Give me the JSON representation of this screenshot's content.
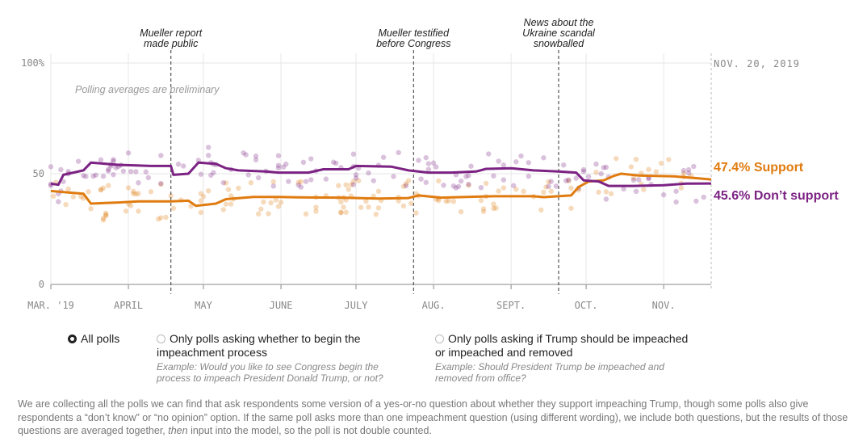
{
  "chart_data": {
    "type": "line",
    "title": "",
    "xlabel": "",
    "ylabel": "",
    "ylim": [
      0,
      100
    ],
    "yticks": [
      {
        "value": 100,
        "label": "100%"
      },
      {
        "value": 50,
        "label": "50"
      },
      {
        "value": 0,
        "label": "0"
      }
    ],
    "xlim": [
      "2019-03-01",
      "2019-11-20"
    ],
    "xticks": [
      {
        "date": "2019-03-01",
        "label": "MAR. '19"
      },
      {
        "date": "2019-04-01",
        "label": "APRIL"
      },
      {
        "date": "2019-05-01",
        "label": "MAY"
      },
      {
        "date": "2019-06-01",
        "label": "JUNE"
      },
      {
        "date": "2019-07-01",
        "label": "JULY"
      },
      {
        "date": "2019-08-01",
        "label": "AUG."
      },
      {
        "date": "2019-09-01",
        "label": "SEPT."
      },
      {
        "date": "2019-10-01",
        "label": "OCT."
      },
      {
        "date": "2019-11-01",
        "label": "NOV."
      }
    ],
    "grid": true,
    "date_label": "NOV. 20, 2019",
    "note": "Polling averages are preliminary",
    "events": [
      {
        "date": "2019-04-18",
        "lines": [
          "Mueller report",
          "made public"
        ]
      },
      {
        "date": "2019-07-24",
        "lines": [
          "Mueller testified",
          "before Congress"
        ]
      },
      {
        "date": "2019-09-20",
        "lines": [
          "News about the",
          "Ukraine scandal",
          "snowballed"
        ]
      }
    ],
    "series": [
      {
        "key": "support",
        "end_label": "47.4% Support",
        "color": "#e07b10",
        "points": [
          [
            "2019-03-01",
            42.2
          ],
          [
            "2019-03-08",
            41.5
          ],
          [
            "2019-03-14",
            41.0
          ],
          [
            "2019-03-17",
            36.5
          ],
          [
            "2019-03-28",
            37.0
          ],
          [
            "2019-04-05",
            37.5
          ],
          [
            "2019-04-18",
            37.5
          ],
          [
            "2019-04-25",
            37.8
          ],
          [
            "2019-04-28",
            35.5
          ],
          [
            "2019-05-06",
            36.5
          ],
          [
            "2019-05-10",
            38.5
          ],
          [
            "2019-05-21",
            39.5
          ],
          [
            "2019-05-31",
            39.5
          ],
          [
            "2019-06-08",
            39.3
          ],
          [
            "2019-06-25",
            39.2
          ],
          [
            "2019-07-10",
            38.8
          ],
          [
            "2019-07-22",
            39.0
          ],
          [
            "2019-07-26",
            40.2
          ],
          [
            "2019-08-04",
            39.2
          ],
          [
            "2019-08-14",
            39.5
          ],
          [
            "2019-08-25",
            39.8
          ],
          [
            "2019-09-10",
            39.8
          ],
          [
            "2019-09-14",
            39.4
          ],
          [
            "2019-09-25",
            40.2
          ],
          [
            "2019-09-28",
            44.0
          ],
          [
            "2019-10-02",
            46.5
          ],
          [
            "2019-10-08",
            47.0
          ],
          [
            "2019-10-12",
            49.0
          ],
          [
            "2019-10-15",
            50.0
          ],
          [
            "2019-10-22",
            49.2
          ],
          [
            "2019-11-05",
            48.8
          ],
          [
            "2019-11-14",
            48.0
          ],
          [
            "2019-11-20",
            47.4
          ]
        ]
      },
      {
        "key": "oppose",
        "end_label": "45.6% Don’t support",
        "color": "#7b2283",
        "points": [
          [
            "2019-03-01",
            45.5
          ],
          [
            "2019-03-04",
            45.0
          ],
          [
            "2019-03-06",
            49.5
          ],
          [
            "2019-03-14",
            51.5
          ],
          [
            "2019-03-17",
            55.0
          ],
          [
            "2019-03-28",
            54.0
          ],
          [
            "2019-04-10",
            53.5
          ],
          [
            "2019-04-18",
            53.5
          ],
          [
            "2019-04-19",
            49.5
          ],
          [
            "2019-04-25",
            50.0
          ],
          [
            "2019-04-29",
            55.0
          ],
          [
            "2019-05-06",
            54.5
          ],
          [
            "2019-05-10",
            52.5
          ],
          [
            "2019-05-15",
            51.5
          ],
          [
            "2019-05-26",
            51.0
          ],
          [
            "2019-05-31",
            50.5
          ],
          [
            "2019-06-12",
            50.5
          ],
          [
            "2019-06-18",
            52.0
          ],
          [
            "2019-06-28",
            52.0
          ],
          [
            "2019-07-01",
            53.5
          ],
          [
            "2019-07-15",
            53.2
          ],
          [
            "2019-07-22",
            51.5
          ],
          [
            "2019-07-30",
            50.5
          ],
          [
            "2019-08-08",
            50.5
          ],
          [
            "2019-08-18",
            51.0
          ],
          [
            "2019-08-22",
            52.2
          ],
          [
            "2019-09-01",
            52.5
          ],
          [
            "2019-09-10",
            51.5
          ],
          [
            "2019-09-20",
            51.0
          ],
          [
            "2019-09-27",
            50.5
          ],
          [
            "2019-09-30",
            47.0
          ],
          [
            "2019-10-06",
            46.5
          ],
          [
            "2019-10-10",
            44.5
          ],
          [
            "2019-10-20",
            44.5
          ],
          [
            "2019-11-01",
            44.8
          ],
          [
            "2019-11-10",
            45.5
          ],
          [
            "2019-11-20",
            45.6
          ]
        ]
      }
    ]
  },
  "filters": {
    "options": [
      {
        "label": "All polls",
        "selected": true,
        "example": ""
      },
      {
        "label": "Only polls asking whether to begin the impeachment process",
        "selected": false,
        "example": "Example: Would you like to see Congress begin the process to impeach President Donald Trump, or not?"
      },
      {
        "label": "Only polls asking if Trump should be impeached or impeached and removed",
        "selected": false,
        "example": "Example: Should President Trump be impeached and removed from office?"
      }
    ]
  },
  "footnote": {
    "part1": "We are collecting all the polls we can find that ask respondents some version of a yes-or-no question about whether they support impeaching Trump, though some polls also give respondents a “don’t know” or “no opinion” option. If the same poll asks more than one impeachment question (using different wording), we include both questions, but the results of those questions are averaged together, ",
    "emph": "then",
    "part2": " input into the model, so the poll is not double counted."
  }
}
